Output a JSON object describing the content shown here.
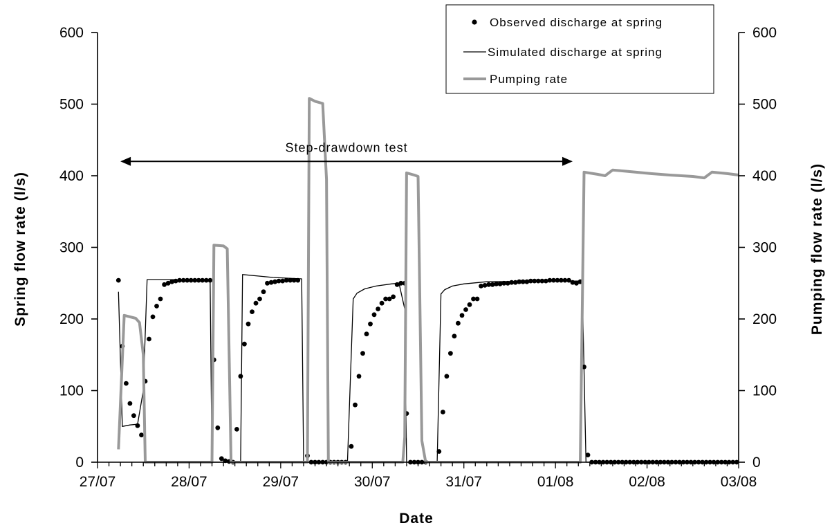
{
  "chart_data": {
    "type": "line",
    "x_type": "date",
    "xlabel": "Date",
    "ylabel_left": "Spring flow rate (l/s)",
    "ylabel_right": "Pumping flow rate (l/s)",
    "ylim": [
      0,
      600
    ],
    "y_ticks": [
      "0",
      "100",
      "200",
      "300",
      "400",
      "500",
      "600"
    ],
    "x_ticks": [
      "27/07",
      "28/07",
      "29/07",
      "30/07",
      "31/07",
      "01/08",
      "02/08",
      "03/08"
    ],
    "xlim": [
      "27/07 00:00",
      "03/08 00:00"
    ],
    "legend_position": "top-right",
    "grid": false,
    "annotation": {
      "text": "Step-drawdown test",
      "from": "27/07 06:00",
      "to": "01/08 04:30",
      "y": 420
    },
    "series": [
      {
        "name": "Observed discharge at spring",
        "style": "markers",
        "color": "#000000",
        "points": [
          [
            "27/07 05:30",
            254
          ],
          [
            "27/07 06:30",
            162
          ],
          [
            "27/07 07:30",
            110
          ],
          [
            "27/07 08:30",
            82
          ],
          [
            "27/07 09:30",
            65
          ],
          [
            "27/07 10:30",
            51
          ],
          [
            "27/07 11:30",
            38
          ],
          [
            "27/07 12:30",
            113
          ],
          [
            "27/07 13:30",
            172
          ],
          [
            "27/07 14:30",
            203
          ],
          [
            "27/07 15:30",
            218
          ],
          [
            "27/07 16:30",
            228
          ],
          [
            "27/07 17:30",
            248
          ],
          [
            "27/07 18:30",
            250
          ],
          [
            "27/07 19:30",
            252
          ],
          [
            "27/07 20:30",
            253
          ],
          [
            "27/07 21:30",
            254
          ],
          [
            "27/07 22:30",
            254
          ],
          [
            "27/07 23:30",
            254
          ],
          [
            "28/07 00:30",
            254
          ],
          [
            "28/07 01:30",
            254
          ],
          [
            "28/07 02:30",
            254
          ],
          [
            "28/07 03:30",
            254
          ],
          [
            "28/07 04:30",
            254
          ],
          [
            "28/07 05:30",
            254
          ],
          [
            "28/07 06:30",
            143
          ],
          [
            "28/07 07:30",
            48
          ],
          [
            "28/07 08:30",
            5
          ],
          [
            "28/07 09:30",
            2
          ],
          [
            "28/07 10:30",
            1
          ],
          [
            "28/07 11:30",
            0
          ],
          [
            "28/07 12:30",
            46
          ],
          [
            "28/07 13:30",
            120
          ],
          [
            "28/07 14:30",
            165
          ],
          [
            "28/07 15:30",
            193
          ],
          [
            "28/07 16:30",
            210
          ],
          [
            "28/07 17:30",
            222
          ],
          [
            "28/07 18:30",
            228
          ],
          [
            "28/07 19:30",
            238
          ],
          [
            "28/07 20:30",
            250
          ],
          [
            "28/07 21:30",
            251
          ],
          [
            "28/07 22:30",
            252
          ],
          [
            "28/07 23:30",
            253
          ],
          [
            "29/07 00:30",
            253
          ],
          [
            "29/07 01:30",
            254
          ],
          [
            "29/07 02:30",
            254
          ],
          [
            "29/07 03:30",
            254
          ],
          [
            "29/07 04:30",
            254
          ],
          [
            "29/07 07:00",
            9
          ],
          [
            "29/07 08:00",
            0
          ],
          [
            "29/07 09:00",
            0
          ],
          [
            "29/07 10:00",
            0
          ],
          [
            "29/07 11:00",
            0
          ],
          [
            "29/07 12:00",
            0
          ],
          [
            "29/07 13:00",
            0
          ],
          [
            "29/07 14:00",
            0
          ],
          [
            "29/07 15:00",
            0
          ],
          [
            "29/07 16:00",
            0
          ],
          [
            "29/07 17:00",
            0
          ],
          [
            "29/07 18:30",
            22
          ],
          [
            "29/07 19:30",
            80
          ],
          [
            "29/07 20:30",
            120
          ],
          [
            "29/07 21:30",
            152
          ],
          [
            "29/07 22:30",
            179
          ],
          [
            "29/07 23:30",
            193
          ],
          [
            "30/07 00:30",
            206
          ],
          [
            "30/07 01:30",
            214
          ],
          [
            "30/07 02:30",
            222
          ],
          [
            "30/07 03:30",
            228
          ],
          [
            "30/07 04:30",
            228
          ],
          [
            "30/07 05:30",
            231
          ],
          [
            "30/07 06:30",
            248
          ],
          [
            "30/07 07:30",
            250
          ],
          [
            "30/07 08:30",
            250
          ],
          [
            "30/07 09:00",
            68
          ],
          [
            "30/07 10:00",
            0
          ],
          [
            "30/07 11:00",
            0
          ],
          [
            "30/07 12:00",
            0
          ],
          [
            "30/07 13:00",
            0
          ],
          [
            "30/07 14:00",
            0
          ],
          [
            "30/07 17:30",
            15
          ],
          [
            "30/07 18:30",
            70
          ],
          [
            "30/07 19:30",
            120
          ],
          [
            "30/07 20:30",
            152
          ],
          [
            "30/07 21:30",
            176
          ],
          [
            "30/07 22:30",
            194
          ],
          [
            "30/07 23:30",
            205
          ],
          [
            "31/07 00:30",
            213
          ],
          [
            "31/07 01:30",
            220
          ],
          [
            "31/07 02:30",
            228
          ],
          [
            "31/07 03:30",
            228
          ],
          [
            "31/07 04:30",
            246
          ],
          [
            "31/07 05:30",
            247
          ],
          [
            "31/07 06:30",
            248
          ],
          [
            "31/07 07:30",
            248
          ],
          [
            "31/07 08:30",
            249
          ],
          [
            "31/07 09:30",
            249
          ],
          [
            "31/07 10:30",
            250
          ],
          [
            "31/07 11:30",
            250
          ],
          [
            "31/07 12:30",
            251
          ],
          [
            "31/07 13:30",
            251
          ],
          [
            "31/07 14:30",
            252
          ],
          [
            "31/07 15:30",
            252
          ],
          [
            "31/07 16:30",
            252
          ],
          [
            "31/07 17:30",
            253
          ],
          [
            "31/07 18:30",
            253
          ],
          [
            "31/07 19:30",
            253
          ],
          [
            "31/07 20:30",
            253
          ],
          [
            "31/07 21:30",
            253
          ],
          [
            "31/07 22:30",
            254
          ],
          [
            "31/07 23:30",
            254
          ],
          [
            "01/08 00:30",
            254
          ],
          [
            "01/08 01:30",
            254
          ],
          [
            "01/08 02:30",
            254
          ],
          [
            "01/08 03:30",
            254
          ],
          [
            "01/08 04:30",
            251
          ],
          [
            "01/08 05:30",
            250
          ],
          [
            "01/08 06:30",
            252
          ],
          [
            "01/08 07:30",
            133
          ],
          [
            "01/08 08:30",
            10
          ],
          [
            "01/08 09:30",
            0
          ],
          [
            "01/08 10:30",
            0
          ],
          [
            "01/08 11:30",
            0
          ],
          [
            "01/08 12:30",
            0
          ],
          [
            "01/08 13:30",
            0
          ],
          [
            "01/08 14:30",
            0
          ],
          [
            "01/08 15:30",
            0
          ],
          [
            "01/08 16:30",
            0
          ],
          [
            "01/08 17:30",
            0
          ],
          [
            "01/08 18:30",
            0
          ],
          [
            "01/08 19:30",
            0
          ],
          [
            "01/08 20:30",
            0
          ],
          [
            "01/08 21:30",
            0
          ],
          [
            "01/08 22:30",
            0
          ],
          [
            "01/08 23:30",
            0
          ],
          [
            "02/08 00:30",
            0
          ],
          [
            "02/08 01:30",
            0
          ],
          [
            "02/08 02:30",
            0
          ],
          [
            "02/08 03:30",
            0
          ],
          [
            "02/08 04:30",
            0
          ],
          [
            "02/08 05:30",
            0
          ],
          [
            "02/08 06:30",
            0
          ],
          [
            "02/08 07:30",
            0
          ],
          [
            "02/08 08:30",
            0
          ],
          [
            "02/08 09:30",
            0
          ],
          [
            "02/08 10:30",
            0
          ],
          [
            "02/08 11:30",
            0
          ],
          [
            "02/08 12:30",
            0
          ],
          [
            "02/08 13:30",
            0
          ],
          [
            "02/08 14:30",
            0
          ],
          [
            "02/08 15:30",
            0
          ],
          [
            "02/08 16:30",
            0
          ],
          [
            "02/08 17:30",
            0
          ],
          [
            "02/08 18:30",
            0
          ],
          [
            "02/08 19:30",
            0
          ],
          [
            "02/08 20:30",
            0
          ],
          [
            "02/08 21:30",
            0
          ],
          [
            "02/08 22:30",
            0
          ],
          [
            "02/08 23:30",
            0
          ]
        ]
      },
      {
        "name": "Simulated discharge at spring",
        "style": "line",
        "color": "#000000",
        "points": [
          [
            "27/07 05:30",
            238
          ],
          [
            "27/07 06:30",
            50
          ],
          [
            "27/07 08:30",
            52
          ],
          [
            "27/07 10:30",
            53
          ],
          [
            "27/07 12:00",
            100
          ],
          [
            "27/07 13:00",
            255
          ],
          [
            "28/07 05:30",
            255
          ],
          [
            "28/07 06:00",
            0
          ],
          [
            "28/07 13:30",
            0
          ],
          [
            "28/07 14:00",
            262
          ],
          [
            "28/07 18:00",
            260
          ],
          [
            "28/07 22:00",
            258
          ],
          [
            "29/07 05:30",
            256
          ],
          [
            "29/07 06:00",
            0
          ],
          [
            "29/07 17:30",
            0
          ],
          [
            "29/07 19:00",
            228
          ],
          [
            "29/07 20:00",
            236
          ],
          [
            "29/07 22:00",
            242
          ],
          [
            "30/07 01:00",
            246
          ],
          [
            "30/07 05:00",
            249
          ],
          [
            "30/07 07:00",
            250
          ],
          [
            "30/07 08:30",
            214
          ],
          [
            "30/07 09:00",
            0
          ],
          [
            "30/07 17:00",
            0
          ],
          [
            "30/07 18:00",
            235
          ],
          [
            "30/07 19:00",
            241
          ],
          [
            "30/07 21:00",
            246
          ],
          [
            "31/07 00:00",
            249
          ],
          [
            "31/07 06:00",
            252
          ],
          [
            "01/08 06:00",
            253
          ],
          [
            "01/08 07:00",
            250
          ],
          [
            "01/08 08:00",
            0
          ],
          [
            "03/08 00:00",
            0
          ]
        ]
      },
      {
        "name": "Pumping rate",
        "style": "line",
        "color": "#999999",
        "points": [
          [
            "27/07 05:30",
            18
          ],
          [
            "27/07 07:00",
            205
          ],
          [
            "27/07 10:00",
            201
          ],
          [
            "27/07 11:00",
            195
          ],
          [
            "27/07 12:00",
            150
          ],
          [
            "27/07 12:30",
            0
          ],
          [
            "28/07 06:00",
            0
          ],
          [
            "28/07 06:30",
            303
          ],
          [
            "28/07 09:00",
            302
          ],
          [
            "28/07 10:00",
            298
          ],
          [
            "28/07 11:00",
            0
          ],
          [
            "29/07 07:00",
            0
          ],
          [
            "29/07 07:30",
            508
          ],
          [
            "29/07 09:00",
            504
          ],
          [
            "29/07 11:00",
            501
          ],
          [
            "29/07 12:00",
            395
          ],
          [
            "29/07 12:30",
            0
          ],
          [
            "30/07 08:00",
            0
          ],
          [
            "30/07 08:30",
            35
          ],
          [
            "30/07 09:00",
            404
          ],
          [
            "30/07 11:00",
            401
          ],
          [
            "30/07 12:00",
            399
          ],
          [
            "30/07 13:00",
            30
          ],
          [
            "30/07 14:00",
            0
          ],
          [
            "01/08 06:30",
            0
          ],
          [
            "01/08 07:30",
            405
          ],
          [
            "01/08 11:00",
            402
          ],
          [
            "01/08 13:00",
            400
          ],
          [
            "01/08 15:00",
            408
          ],
          [
            "01/08 19:00",
            406
          ],
          [
            "02/08 01:00",
            403
          ],
          [
            "02/08 06:00",
            401
          ],
          [
            "02/08 12:00",
            399
          ],
          [
            "02/08 15:00",
            397
          ],
          [
            "02/08 17:00",
            405
          ],
          [
            "02/08 21:00",
            403
          ],
          [
            "03/08 00:00",
            401
          ]
        ]
      }
    ]
  }
}
